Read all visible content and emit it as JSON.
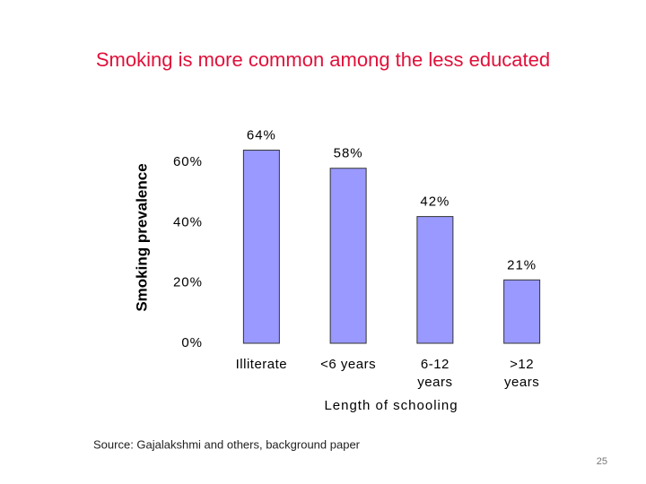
{
  "chart_data": {
    "type": "bar",
    "title": "Smoking is more common among the less educated",
    "y_label": "Smoking prevalence",
    "x_label": "Length of schooling",
    "categories": [
      "Illiterate",
      "<6 years",
      "6-12 years",
      ">12 years"
    ],
    "values": [
      64,
      58,
      42,
      21
    ],
    "value_labels": [
      "64%",
      "58%",
      "42%",
      "21%"
    ],
    "color": "#9999ff",
    "ylim": [
      0,
      60
    ],
    "yticks": [
      {
        "value": 0,
        "label": "0%"
      },
      {
        "value": 20,
        "label": "20%"
      },
      {
        "value": 40,
        "label": "40%"
      },
      {
        "value": 60,
        "label": "60%"
      }
    ],
    "grid": false,
    "source": "Source: Gajalakshmi and others, background paper",
    "page_number": "25"
  }
}
